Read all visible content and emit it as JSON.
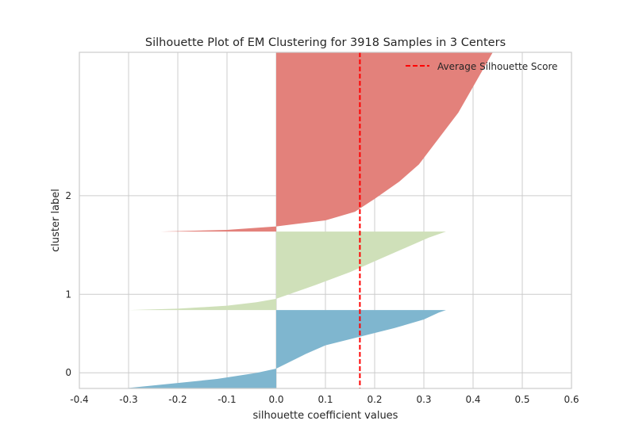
{
  "chart_data": {
    "type": "area",
    "title": "Silhouette Plot of EM Clustering for 3918 Samples in 3 Centers",
    "xlabel": "silhouette coefficient values",
    "ylabel": "cluster label",
    "xlim": [
      -0.4,
      0.6
    ],
    "ylim": [
      -400,
      3500
    ],
    "x_ticks": [
      -0.4,
      -0.3,
      -0.2,
      -0.1,
      0.0,
      0.1,
      0.2,
      0.3,
      0.4,
      0.5,
      0.6
    ],
    "y_tick_labels": [
      "0",
      "1",
      "2"
    ],
    "grid": true,
    "legend": "top-right",
    "average_score": {
      "label": "Average Silhouette Score",
      "value": 0.17,
      "color": "#ff0000"
    },
    "clusters": [
      {
        "label": "0",
        "color": "#7fb6cf",
        "y_range": [
          -400,
          510
        ],
        "profile": [
          [
            -400,
            -0.31
          ],
          [
            -360,
            -0.24
          ],
          [
            -290,
            -0.12
          ],
          [
            -220,
            -0.04
          ],
          [
            -170,
            0.0
          ],
          [
            0,
            0.06
          ],
          [
            100,
            0.1
          ],
          [
            200,
            0.17
          ],
          [
            300,
            0.24
          ],
          [
            400,
            0.3
          ],
          [
            480,
            0.33
          ],
          [
            510,
            0.345
          ]
        ]
      },
      {
        "label": "1",
        "color": "#cfe0b9",
        "y_range": [
          510,
          1420
        ],
        "profile": [
          [
            510,
            -0.3
          ],
          [
            525,
            -0.2
          ],
          [
            560,
            -0.1
          ],
          [
            600,
            -0.04
          ],
          [
            640,
            0.0
          ],
          [
            700,
            0.03
          ],
          [
            800,
            0.08
          ],
          [
            950,
            0.15
          ],
          [
            1100,
            0.21
          ],
          [
            1250,
            0.27
          ],
          [
            1350,
            0.31
          ],
          [
            1420,
            0.345
          ]
        ]
      },
      {
        "label": "2",
        "color": "#e3817b",
        "y_range": [
          1420,
          3500
        ],
        "profile": [
          [
            1420,
            -0.235
          ],
          [
            1440,
            -0.1
          ],
          [
            1480,
            0.0
          ],
          [
            1550,
            0.1
          ],
          [
            1650,
            0.16
          ],
          [
            1800,
            0.2
          ],
          [
            2000,
            0.25
          ],
          [
            2200,
            0.29
          ],
          [
            2500,
            0.33
          ],
          [
            2800,
            0.37
          ],
          [
            3100,
            0.4
          ],
          [
            3300,
            0.42
          ],
          [
            3500,
            0.44
          ]
        ]
      }
    ]
  }
}
